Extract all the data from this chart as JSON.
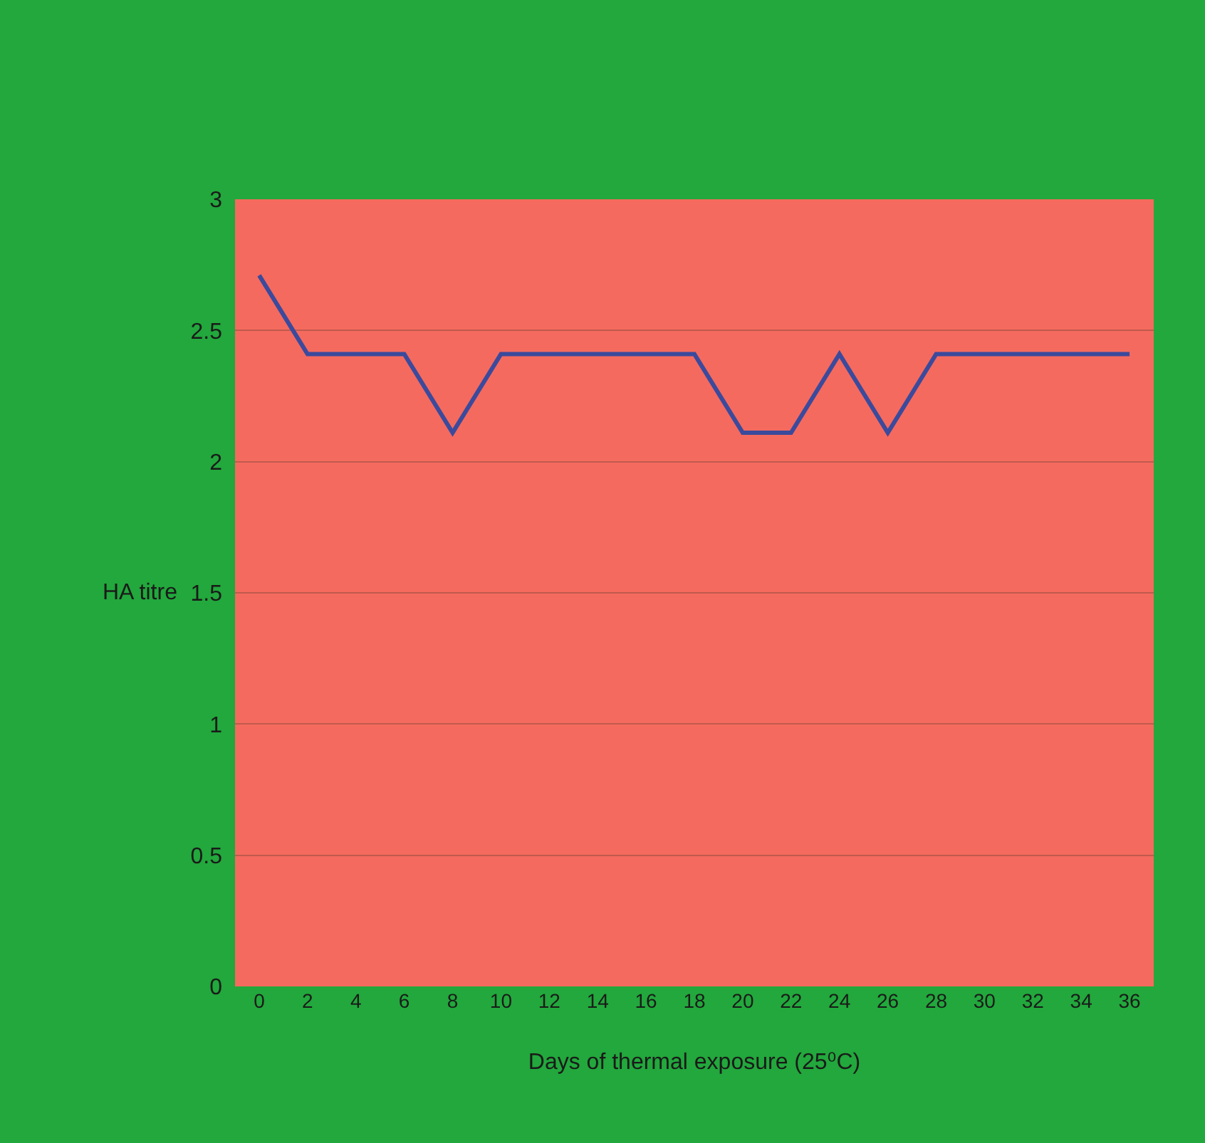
{
  "chart_data": {
    "type": "line",
    "xlabel": "Days of thermal exposure (25⁰C)",
    "ylabel": "HA titre",
    "x": [
      0,
      2,
      4,
      6,
      8,
      10,
      12,
      14,
      16,
      18,
      20,
      22,
      24,
      26,
      28,
      30,
      32,
      34,
      36
    ],
    "series": [
      {
        "color": "#3b4a9c",
        "values": [
          2.71,
          2.41,
          2.41,
          2.41,
          2.11,
          2.41,
          2.41,
          2.41,
          2.41,
          2.41,
          2.11,
          2.11,
          2.41,
          2.11,
          2.41,
          2.41,
          2.41,
          2.41,
          2.41
        ]
      }
    ],
    "xlim": [
      -1,
      37
    ],
    "xticks": [
      0,
      2,
      4,
      6,
      8,
      10,
      12,
      14,
      16,
      18,
      20,
      22,
      24,
      26,
      28,
      30,
      32,
      34,
      36
    ],
    "ylim": [
      0,
      3
    ],
    "yticks": [
      0,
      0.5,
      1,
      1.5,
      2,
      2.5,
      3
    ],
    "grid": "y"
  }
}
